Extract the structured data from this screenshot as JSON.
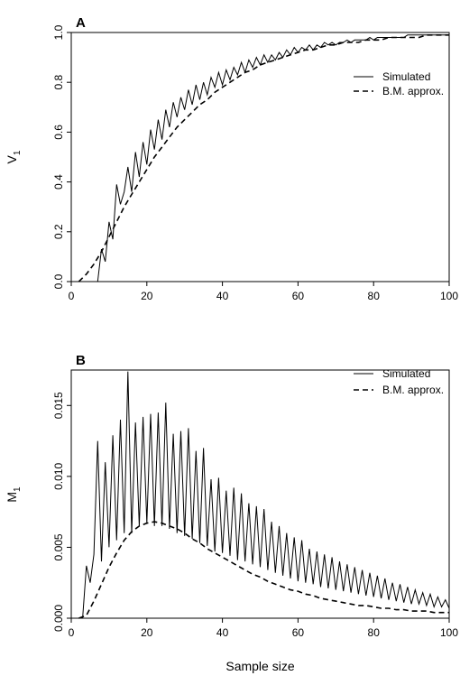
{
  "chart_data": [
    {
      "type": "line",
      "panel_label": "A",
      "ylabel": "V",
      "ylabel_sub": "1",
      "xlim": [
        0,
        100
      ],
      "ylim": [
        0,
        1
      ],
      "xticks": [
        0,
        20,
        40,
        60,
        80,
        100
      ],
      "yticks": [
        0.0,
        0.2,
        0.4,
        0.6,
        0.8,
        1.0
      ],
      "ytick_labels": [
        "0.0",
        "0.2",
        "0.4",
        "0.6",
        "0.8",
        "1.0"
      ],
      "legend_position": "right",
      "series": [
        {
          "name": "Simulated",
          "style": "solid",
          "x": [
            2,
            3,
            4,
            5,
            6,
            7,
            8,
            9,
            10,
            11,
            12,
            13,
            14,
            15,
            16,
            17,
            18,
            19,
            20,
            21,
            22,
            23,
            24,
            25,
            26,
            27,
            28,
            29,
            30,
            31,
            32,
            33,
            34,
            35,
            36,
            37,
            38,
            39,
            40,
            41,
            42,
            43,
            44,
            45,
            46,
            47,
            48,
            49,
            50,
            51,
            52,
            53,
            54,
            55,
            56,
            57,
            58,
            59,
            60,
            61,
            62,
            63,
            64,
            65,
            66,
            67,
            68,
            69,
            70,
            71,
            72,
            73,
            74,
            75,
            76,
            77,
            78,
            79,
            80,
            81,
            82,
            83,
            84,
            85,
            86,
            87,
            88,
            89,
            90,
            91,
            92,
            93,
            94,
            95,
            96,
            97,
            98,
            99,
            100
          ],
          "y": [
            0.0,
            0.0,
            0.0,
            0.0,
            0.0,
            0.0,
            0.13,
            0.08,
            0.24,
            0.17,
            0.39,
            0.31,
            0.36,
            0.46,
            0.36,
            0.52,
            0.42,
            0.56,
            0.47,
            0.61,
            0.53,
            0.65,
            0.57,
            0.69,
            0.62,
            0.72,
            0.66,
            0.74,
            0.69,
            0.77,
            0.71,
            0.79,
            0.73,
            0.8,
            0.75,
            0.82,
            0.78,
            0.84,
            0.79,
            0.85,
            0.81,
            0.86,
            0.83,
            0.88,
            0.84,
            0.89,
            0.86,
            0.9,
            0.87,
            0.91,
            0.88,
            0.91,
            0.89,
            0.92,
            0.9,
            0.93,
            0.91,
            0.94,
            0.92,
            0.94,
            0.93,
            0.95,
            0.93,
            0.95,
            0.94,
            0.96,
            0.95,
            0.96,
            0.95,
            0.96,
            0.96,
            0.97,
            0.96,
            0.97,
            0.97,
            0.97,
            0.97,
            0.98,
            0.97,
            0.98,
            0.98,
            0.98,
            0.98,
            0.98,
            0.98,
            0.98,
            0.98,
            0.99,
            0.99,
            0.99,
            0.99,
            0.99,
            0.99,
            0.99,
            0.99,
            0.99,
            0.99,
            0.99,
            0.99
          ]
        },
        {
          "name": "B.M. approx.",
          "style": "dashed",
          "x": [
            2,
            4,
            6,
            8,
            10,
            12,
            14,
            16,
            18,
            20,
            22,
            24,
            26,
            28,
            30,
            32,
            34,
            36,
            38,
            40,
            42,
            44,
            46,
            48,
            50,
            52,
            54,
            56,
            58,
            60,
            62,
            64,
            66,
            68,
            70,
            72,
            74,
            76,
            78,
            80,
            82,
            84,
            86,
            88,
            90,
            92,
            94,
            96,
            98,
            100
          ],
          "y": [
            0.0,
            0.03,
            0.07,
            0.12,
            0.18,
            0.24,
            0.3,
            0.35,
            0.4,
            0.45,
            0.5,
            0.54,
            0.58,
            0.62,
            0.65,
            0.68,
            0.71,
            0.73,
            0.76,
            0.78,
            0.8,
            0.82,
            0.84,
            0.85,
            0.87,
            0.88,
            0.89,
            0.9,
            0.91,
            0.92,
            0.93,
            0.93,
            0.94,
            0.95,
            0.95,
            0.96,
            0.96,
            0.96,
            0.97,
            0.97,
            0.97,
            0.98,
            0.98,
            0.98,
            0.98,
            0.98,
            0.99,
            0.99,
            0.99,
            0.99
          ]
        }
      ]
    },
    {
      "type": "line",
      "panel_label": "B",
      "ylabel": "M",
      "ylabel_sub": "1",
      "xlabel": "Sample size",
      "xlim": [
        0,
        100
      ],
      "ylim": [
        0,
        0.0175
      ],
      "xticks": [
        0,
        20,
        40,
        60,
        80,
        100
      ],
      "yticks": [
        0.0,
        0.005,
        0.01,
        0.015
      ],
      "ytick_labels": [
        "0.000",
        "0.005",
        "0.010",
        "0.015"
      ],
      "legend_position": "top-right",
      "series": [
        {
          "name": "Simulated",
          "style": "solid",
          "x": [
            1,
            2,
            3,
            4,
            5,
            6,
            7,
            8,
            9,
            10,
            11,
            12,
            13,
            14,
            15,
            16,
            17,
            18,
            19,
            20,
            21,
            22,
            23,
            24,
            25,
            26,
            27,
            28,
            29,
            30,
            31,
            32,
            33,
            34,
            35,
            36,
            37,
            38,
            39,
            40,
            41,
            42,
            43,
            44,
            45,
            46,
            47,
            48,
            49,
            50,
            51,
            52,
            53,
            54,
            55,
            56,
            57,
            58,
            59,
            60,
            61,
            62,
            63,
            64,
            65,
            66,
            67,
            68,
            69,
            70,
            71,
            72,
            73,
            74,
            75,
            76,
            77,
            78,
            79,
            80,
            81,
            82,
            83,
            84,
            85,
            86,
            87,
            88,
            89,
            90,
            91,
            92,
            93,
            94,
            95,
            96,
            97,
            98,
            99,
            100
          ],
          "y": [
            0.0,
            0.0,
            0.0,
            0.0037,
            0.0025,
            0.0045,
            0.0125,
            0.004,
            0.011,
            0.005,
            0.0129,
            0.0055,
            0.014,
            0.006,
            0.0174,
            0.006,
            0.0138,
            0.0065,
            0.0142,
            0.0067,
            0.0144,
            0.0065,
            0.0145,
            0.0065,
            0.0152,
            0.0063,
            0.013,
            0.006,
            0.0132,
            0.0058,
            0.0134,
            0.0056,
            0.0118,
            0.0053,
            0.012,
            0.0051,
            0.0098,
            0.0047,
            0.0099,
            0.0046,
            0.009,
            0.0044,
            0.0092,
            0.0041,
            0.0088,
            0.004,
            0.0081,
            0.0038,
            0.0079,
            0.0036,
            0.0077,
            0.0034,
            0.0068,
            0.0032,
            0.0065,
            0.003,
            0.006,
            0.0028,
            0.0057,
            0.0026,
            0.0055,
            0.0025,
            0.0049,
            0.0024,
            0.0047,
            0.0022,
            0.0045,
            0.0021,
            0.0043,
            0.002,
            0.004,
            0.0019,
            0.0038,
            0.0018,
            0.0036,
            0.0017,
            0.0034,
            0.0016,
            0.0032,
            0.0015,
            0.003,
            0.0014,
            0.0028,
            0.0013,
            0.0025,
            0.0012,
            0.0024,
            0.0011,
            0.0022,
            0.001,
            0.002,
            0.001,
            0.0018,
            0.0009,
            0.0017,
            0.0008,
            0.0015,
            0.0008,
            0.0013,
            0.0007
          ]
        },
        {
          "name": "B.M. approx.",
          "style": "dashed",
          "x": [
            2,
            4,
            6,
            8,
            10,
            12,
            14,
            16,
            18,
            20,
            22,
            24,
            26,
            28,
            30,
            32,
            34,
            36,
            38,
            40,
            42,
            44,
            46,
            48,
            50,
            52,
            54,
            56,
            58,
            60,
            62,
            64,
            66,
            68,
            70,
            72,
            74,
            76,
            78,
            80,
            82,
            84,
            86,
            88,
            90,
            92,
            94,
            96,
            98,
            100
          ],
          "y": [
            0.0,
            0.0002,
            0.0012,
            0.0024,
            0.0036,
            0.0046,
            0.0055,
            0.0061,
            0.0065,
            0.0067,
            0.0068,
            0.0067,
            0.0065,
            0.0063,
            0.006,
            0.0056,
            0.0053,
            0.0049,
            0.0046,
            0.0043,
            0.004,
            0.0037,
            0.0034,
            0.0031,
            0.0029,
            0.0026,
            0.0024,
            0.0022,
            0.002,
            0.0019,
            0.0017,
            0.0016,
            0.0014,
            0.0013,
            0.0012,
            0.0011,
            0.001,
            0.0009,
            0.0009,
            0.0008,
            0.0007,
            0.0007,
            0.0006,
            0.0006,
            0.0005,
            0.0005,
            0.0005,
            0.0004,
            0.0004,
            0.0004
          ]
        }
      ]
    }
  ]
}
